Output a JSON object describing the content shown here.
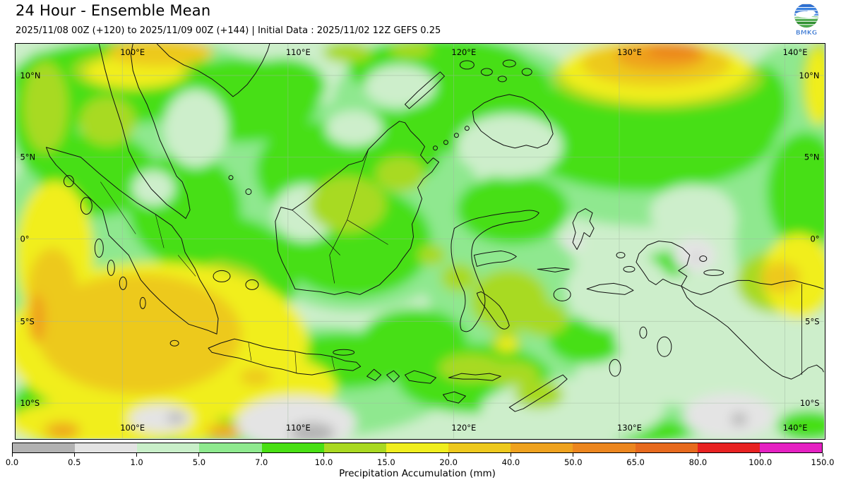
{
  "header": {
    "title": "24 Hour - Ensemble Mean",
    "subtitle": "2025/11/08 00Z (+120) to 2025/11/09 00Z (+144) | Initial Data : 2025/11/02 12Z GEFS 0.25",
    "logo_text": "BMKG"
  },
  "map": {
    "lon_labels": [
      "100°E",
      "110°E",
      "120°E",
      "130°E",
      "140°E"
    ],
    "lat_labels": [
      "10°N",
      "5°N",
      "0°",
      "5°S",
      "10°S"
    ]
  },
  "colorbar": {
    "label": "Precipitation Accumulation (mm)",
    "ticks": [
      "0.0",
      "0.5",
      "1.0",
      "5.0",
      "7.0",
      "10.0",
      "15.0",
      "20.0",
      "40.0",
      "50.0",
      "65.0",
      "80.0",
      "100.0",
      "150.0"
    ],
    "segment_colors": [
      "#b2b2b2",
      "#e3e3e3",
      "#c9efc9",
      "#8ee98e",
      "#49e013",
      "#a9d921",
      "#f0ee1f",
      "#eec91e",
      "#efa21f",
      "#ec861f",
      "#e76a1e",
      "#e82222",
      "#e521c2"
    ]
  },
  "chart_data": {
    "type": "heatmap",
    "title": "24 Hour - Ensemble Mean",
    "subtitle": "2025/11/08 00Z (+120) to 2025/11/09 00Z (+144) | Initial Data : 2025/11/02 12Z GEFS 0.25",
    "colorbar_label": "Precipitation Accumulation (mm)",
    "colorbar_ticks_mm": [
      0.0,
      0.5,
      1.0,
      5.0,
      7.0,
      10.0,
      15.0,
      20.0,
      40.0,
      50.0,
      65.0,
      80.0,
      100.0,
      150.0
    ],
    "colorbar_colors": [
      "#b2b2b2",
      "#e3e3e3",
      "#c9efc9",
      "#8ee98e",
      "#49e013",
      "#a9d921",
      "#f0ee1f",
      "#eec91e",
      "#efa21f",
      "#ec861f",
      "#e76a1e",
      "#e82222",
      "#e521c2"
    ],
    "x_axis_ticks": [
      "100°E",
      "110°E",
      "120°E",
      "130°E",
      "140°E"
    ],
    "y_axis_ticks": [
      "10°N",
      "5°N",
      "0°",
      "5°S",
      "10°S"
    ],
    "grid": true,
    "legend_position": "bottom"
  }
}
